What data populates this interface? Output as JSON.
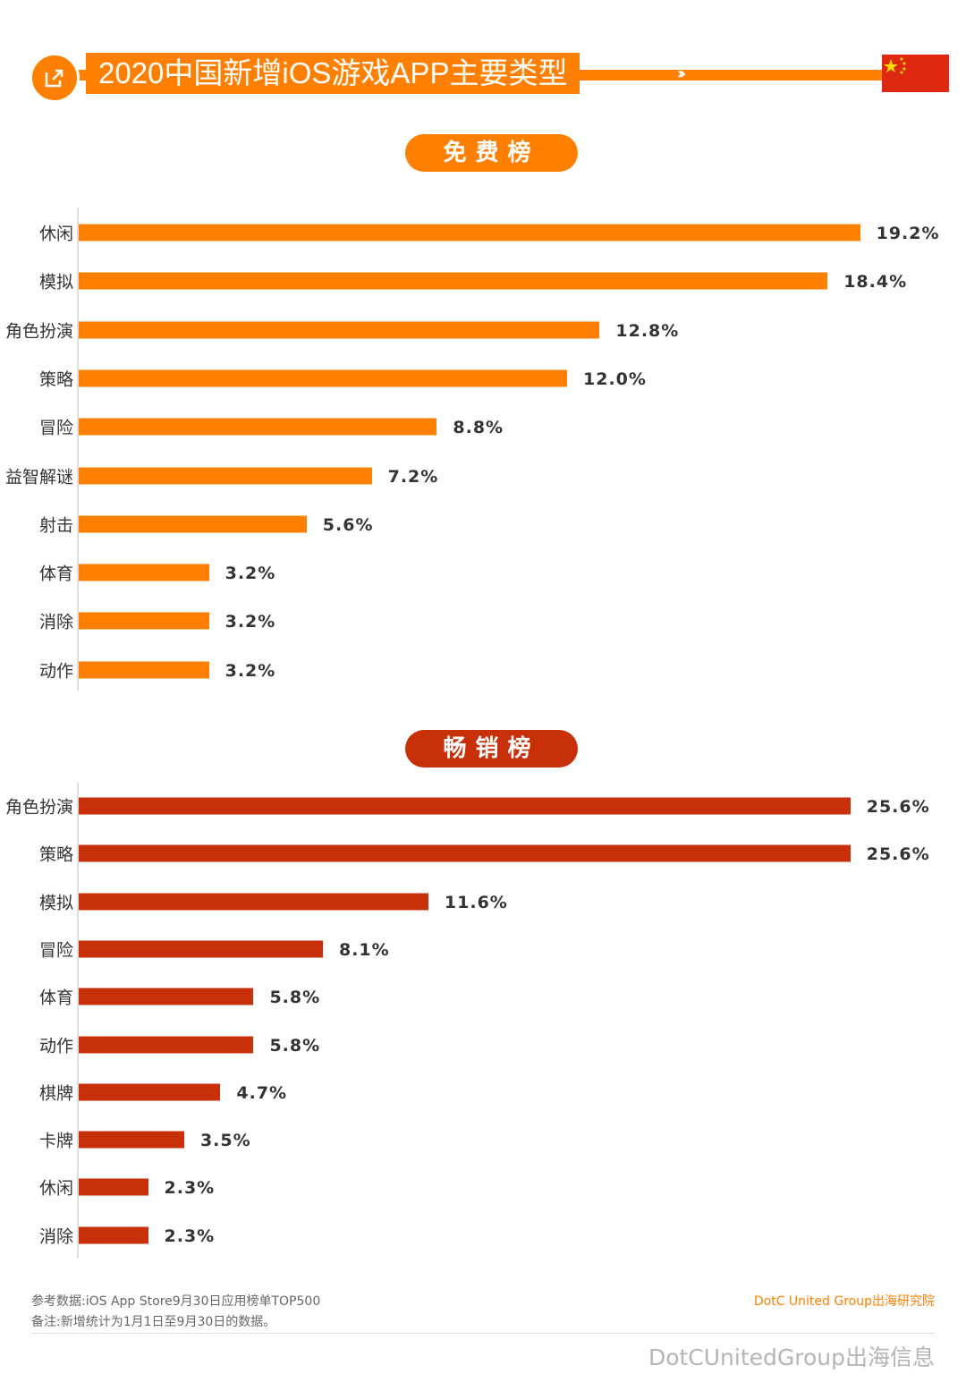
{
  "header": {
    "title": "2020中国新增iOS游戏APP主要类型",
    "icon": "share-icon",
    "flag": "china-flag"
  },
  "chart_data": [
    {
      "type": "bar",
      "orientation": "horizontal",
      "title": "免费榜",
      "color": "#FF7F00",
      "categories": [
        "休闲",
        "模拟",
        "角色扮演",
        "策略",
        "冒险",
        "益智解谜",
        "射击",
        "体育",
        "消除",
        "动作"
      ],
      "values": [
        19.2,
        18.4,
        12.8,
        12.0,
        8.8,
        7.2,
        5.6,
        3.2,
        3.2,
        3.2
      ],
      "labels": [
        "19.2%",
        "18.4%",
        "12.8%",
        "12.0%",
        "8.8%",
        "7.2%",
        "5.6%",
        "3.2%",
        "3.2%",
        "3.2%"
      ]
    },
    {
      "type": "bar",
      "orientation": "horizontal",
      "title": "畅销榜",
      "color": "#C8300A",
      "categories": [
        "角色扮演",
        "策略",
        "模拟",
        "冒险",
        "体育",
        "动作",
        "棋牌",
        "卡牌",
        "休闲",
        "消除"
      ],
      "values": [
        25.6,
        25.6,
        11.6,
        8.1,
        5.8,
        5.8,
        4.7,
        3.5,
        2.3,
        2.3
      ],
      "labels": [
        "25.6%",
        "25.6%",
        "11.6%",
        "8.1%",
        "5.8%",
        "5.8%",
        "4.7%",
        "3.5%",
        "2.3%",
        "2.3%"
      ]
    }
  ],
  "footer": {
    "source": "参考数据:iOS App Store9月30日应用榜单TOP500",
    "note": "备注:新增统计为1月1日至9月30日的数据。",
    "brand": "DotC United Group出海研究院",
    "watermark": "DotCUnitedGroup出海信息"
  }
}
